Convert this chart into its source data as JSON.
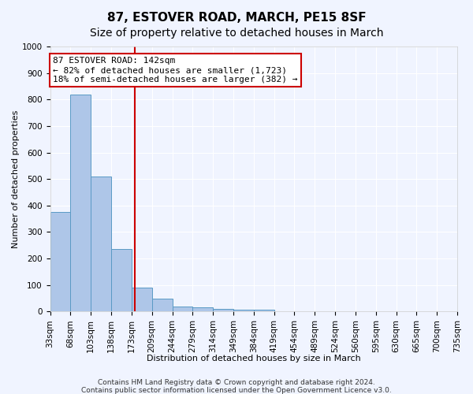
{
  "title": "87, ESTOVER ROAD, MARCH, PE15 8SF",
  "subtitle": "Size of property relative to detached houses in March",
  "xlabel": "Distribution of detached houses by size in March",
  "ylabel": "Number of detached properties",
  "bar_values": [
    375,
    820,
    510,
    235,
    90,
    50,
    20,
    15,
    10,
    8,
    7,
    0,
    0,
    0,
    0,
    0,
    0,
    0,
    0,
    0
  ],
  "bin_labels": [
    "33sqm",
    "68sqm",
    "103sqm",
    "138sqm",
    "173sqm",
    "209sqm",
    "244sqm",
    "279sqm",
    "314sqm",
    "349sqm",
    "384sqm",
    "419sqm",
    "454sqm",
    "489sqm",
    "524sqm",
    "560sqm",
    "595sqm",
    "630sqm",
    "665sqm",
    "700sqm",
    "735sqm"
  ],
  "bar_color": "#aec6e8",
  "bar_edge_color": "#5a9ac5",
  "vline_x": 4.15,
  "vline_color": "#cc0000",
  "annotation_text": "87 ESTOVER ROAD: 142sqm\n← 82% of detached houses are smaller (1,723)\n18% of semi-detached houses are larger (382) →",
  "annotation_box_color": "#ffffff",
  "annotation_box_edge_color": "#cc0000",
  "ylim": [
    0,
    1000
  ],
  "yticks": [
    0,
    100,
    200,
    300,
    400,
    500,
    600,
    700,
    800,
    900,
    1000
  ],
  "footer1": "Contains HM Land Registry data © Crown copyright and database right 2024.",
  "footer2": "Contains public sector information licensed under the Open Government Licence v3.0.",
  "bg_color": "#f0f4ff",
  "grid_color": "#ffffff",
  "title_fontsize": 11,
  "subtitle_fontsize": 10,
  "axis_label_fontsize": 8,
  "tick_fontsize": 7.5,
  "annotation_fontsize": 8,
  "footer_fontsize": 6.5
}
